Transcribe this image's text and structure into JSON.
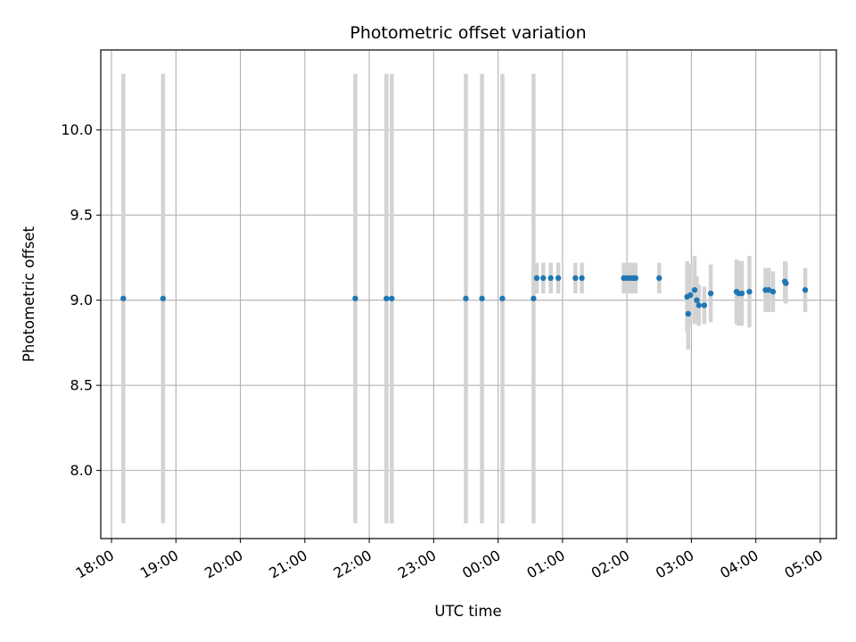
{
  "chart_data": {
    "type": "scatter",
    "title": "Photometric offset variation",
    "xlabel": "UTC time",
    "ylabel": "Photometric offset",
    "x_axis_kind": "time (hours, wrapping past midnight)",
    "xlim": [
      "17:50",
      "05:15"
    ],
    "ylim": [
      7.6,
      10.47
    ],
    "x_ticks": [
      "18:00",
      "19:00",
      "20:00",
      "21:00",
      "22:00",
      "23:00",
      "00:00",
      "01:00",
      "02:00",
      "03:00",
      "04:00",
      "05:00"
    ],
    "y_ticks": [
      "8.0",
      "8.5",
      "9.0",
      "9.5",
      "10.0"
    ],
    "grid": true,
    "marker_color": "#1f77b4",
    "errorbar_color": "#d3d3d3",
    "series": [
      {
        "points": [
          {
            "x": "18:11",
            "y": 9.01,
            "err": 1.32
          },
          {
            "x": "18:48",
            "y": 9.01,
            "err": 1.32
          },
          {
            "x": "21:47",
            "y": 9.01,
            "err": 1.32
          },
          {
            "x": "22:16",
            "y": 9.01,
            "err": 1.32
          },
          {
            "x": "22:21",
            "y": 9.01,
            "err": 1.32
          },
          {
            "x": "23:30",
            "y": 9.01,
            "err": 1.32
          },
          {
            "x": "23:45",
            "y": 9.01,
            "err": 1.32
          },
          {
            "x": "00:04",
            "y": 9.01,
            "err": 1.32
          },
          {
            "x": "00:33",
            "y": 9.01,
            "err": 1.32
          },
          {
            "x": "00:36",
            "y": 9.13,
            "err": 0.09
          },
          {
            "x": "00:42",
            "y": 9.13,
            "err": 0.09
          },
          {
            "x": "00:49",
            "y": 9.13,
            "err": 0.09
          },
          {
            "x": "00:56",
            "y": 9.13,
            "err": 0.09
          },
          {
            "x": "01:12",
            "y": 9.13,
            "err": 0.09
          },
          {
            "x": "01:18",
            "y": 9.13,
            "err": 0.09
          },
          {
            "x": "01:57",
            "y": 9.13,
            "err": 0.09
          },
          {
            "x": "02:00",
            "y": 9.13,
            "err": 0.09
          },
          {
            "x": "02:03",
            "y": 9.13,
            "err": 0.09
          },
          {
            "x": "02:06",
            "y": 9.13,
            "err": 0.09
          },
          {
            "x": "02:08",
            "y": 9.13,
            "err": 0.09
          },
          {
            "x": "02:30",
            "y": 9.13,
            "err": 0.09
          },
          {
            "x": "02:56",
            "y": 9.02,
            "err": 0.21
          },
          {
            "x": "02:57",
            "y": 8.92,
            "err": 0.21
          },
          {
            "x": "02:59",
            "y": 9.03,
            "err": 0.18
          },
          {
            "x": "03:03",
            "y": 9.06,
            "err": 0.2
          },
          {
            "x": "03:05",
            "y": 9.0,
            "err": 0.14
          },
          {
            "x": "03:07",
            "y": 8.97,
            "err": 0.12
          },
          {
            "x": "03:12",
            "y": 8.97,
            "err": 0.11
          },
          {
            "x": "03:18",
            "y": 9.04,
            "err": 0.17
          },
          {
            "x": "03:42",
            "y": 9.05,
            "err": 0.19
          },
          {
            "x": "03:44",
            "y": 9.04,
            "err": 0.19
          },
          {
            "x": "03:47",
            "y": 9.04,
            "err": 0.19
          },
          {
            "x": "03:54",
            "y": 9.05,
            "err": 0.21
          },
          {
            "x": "04:09",
            "y": 9.06,
            "err": 0.13
          },
          {
            "x": "04:12",
            "y": 9.06,
            "err": 0.13
          },
          {
            "x": "04:16",
            "y": 9.05,
            "err": 0.12
          },
          {
            "x": "04:27",
            "y": 9.11,
            "err": 0.12
          },
          {
            "x": "04:28",
            "y": 9.1,
            "err": 0.12
          },
          {
            "x": "04:46",
            "y": 9.06,
            "err": 0.13
          }
        ]
      }
    ]
  }
}
